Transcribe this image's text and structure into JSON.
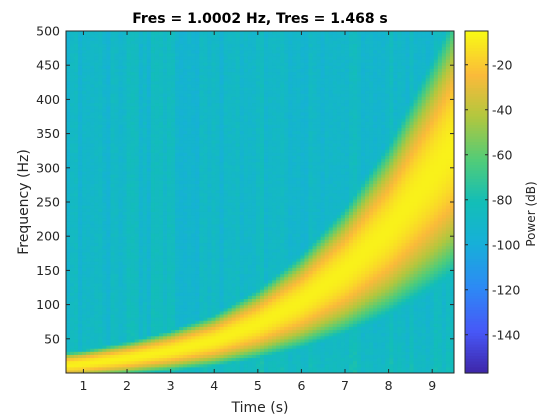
{
  "chart_data": {
    "type": "heatmap",
    "title": "Fres = 1.0002 Hz, Tres = 1.468 s",
    "xlabel": "Time (s)",
    "ylabel": "Frequency (Hz)",
    "xlim": [
      0.6,
      9.5
    ],
    "ylim": [
      0,
      500
    ],
    "x_ticks": [
      1,
      2,
      3,
      4,
      5,
      6,
      7,
      8,
      9
    ],
    "y_ticks": [
      50,
      100,
      150,
      200,
      250,
      300,
      350,
      400,
      450,
      500
    ],
    "colorbar": {
      "label": "Power (dB)",
      "range": [
        -157,
        -5
      ],
      "ticks": [
        -20,
        -40,
        -60,
        -80,
        -100,
        -120,
        -140
      ],
      "colormap": "parula"
    },
    "background_power_db": -90,
    "ridge": {
      "description_values": "instantaneous frequency (Hz) of the chirp at selected times (s)",
      "time": [
        0.6,
        1,
        2,
        3,
        4,
        5,
        6,
        7,
        8,
        9,
        9.5
      ],
      "frequency": [
        12,
        14,
        22,
        33,
        48,
        72,
        105,
        150,
        210,
        290,
        335
      ],
      "peak_power_db": -8
    },
    "grid": false
  }
}
